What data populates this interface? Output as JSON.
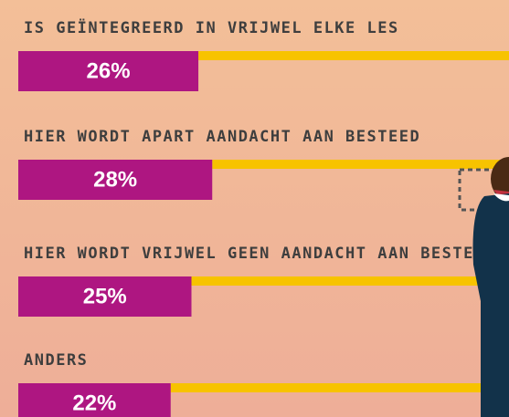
{
  "chart_data": {
    "type": "bar",
    "orientation": "horizontal",
    "categories": [
      "IS GEÏNTEGREERD IN VRIJWEL ELKE LES",
      "HIER WORDT APART AANDACHT AAN BESTEED",
      "HIER WORDT VRIJWEL GEEN AANDACHT AAN BESTEED",
      "ANDERS"
    ],
    "values": [
      26,
      28,
      25,
      22
    ],
    "value_labels": [
      "26%",
      "28%",
      "25%",
      "22%"
    ],
    "color": "#ae1681",
    "track_color": "#f7c300"
  }
}
